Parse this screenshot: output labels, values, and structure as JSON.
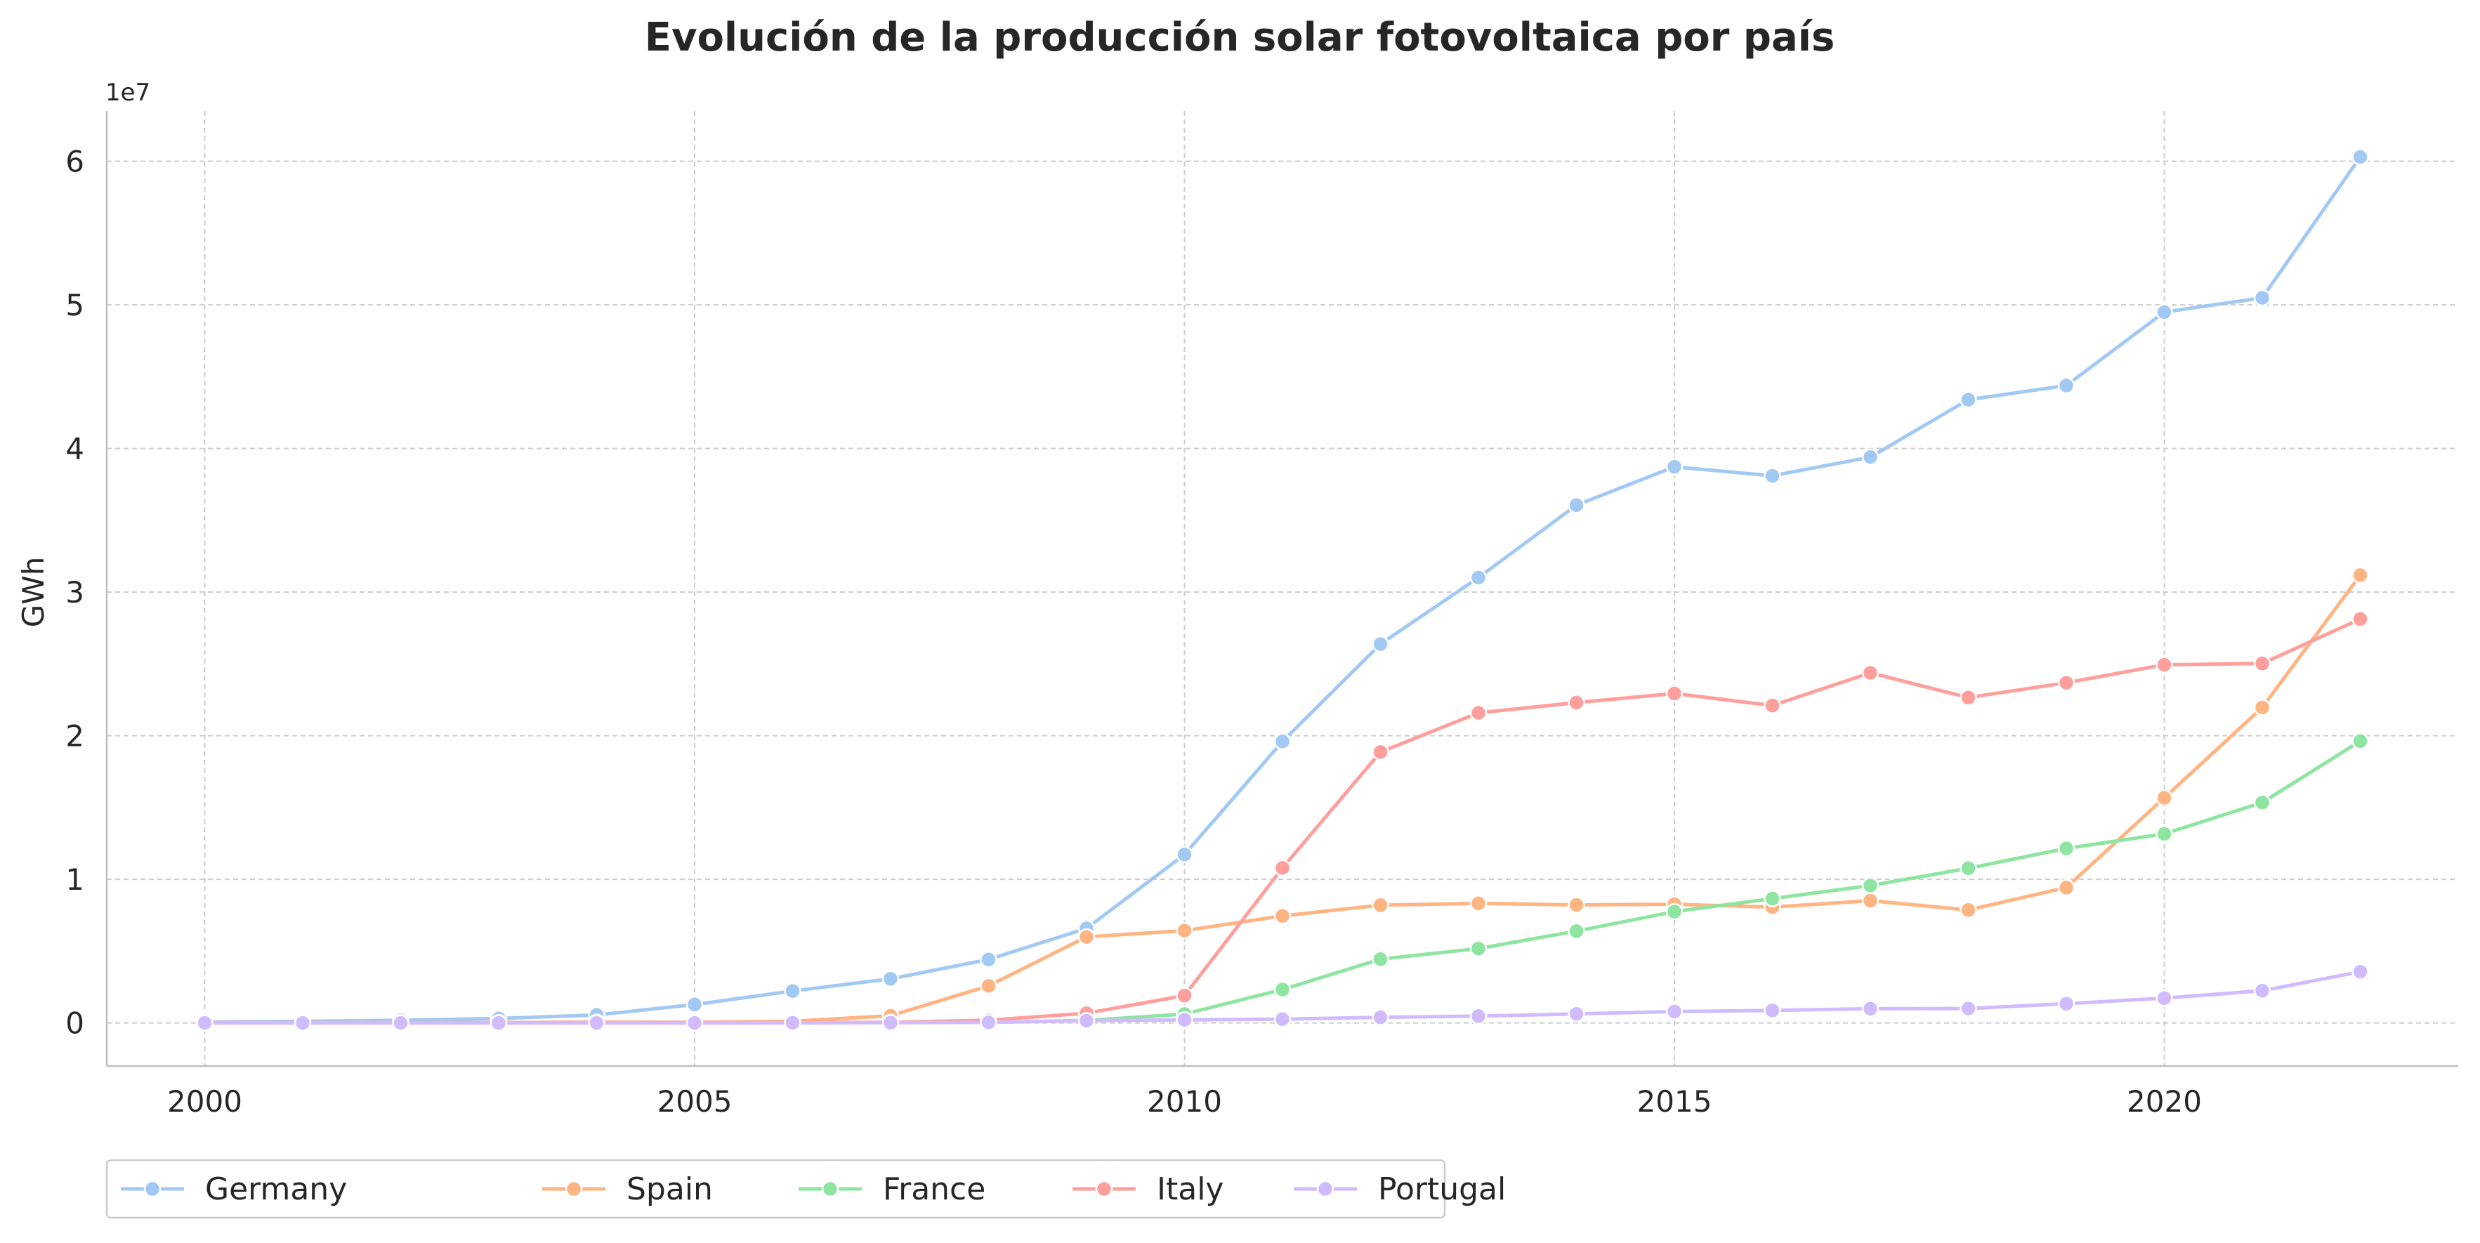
{
  "chart_data": {
    "type": "line",
    "title": "Evolución de la producción solar fotovoltaica por país",
    "xlabel": "",
    "ylabel": "GWh",
    "y_offset_label": "1e7",
    "y_tick_scale": 10000000,
    "xlim": [
      1999,
      2023
    ],
    "ylim": [
      -3000000,
      63500000
    ],
    "x_ticks": [
      2000,
      2005,
      2010,
      2015,
      2020
    ],
    "y_ticks": [
      0,
      10000000,
      20000000,
      30000000,
      40000000,
      50000000,
      60000000
    ],
    "grid": true,
    "legend_position": "bottom-left, below plot",
    "x": [
      2000,
      2001,
      2002,
      2003,
      2004,
      2005,
      2006,
      2007,
      2008,
      2009,
      2010,
      2011,
      2012,
      2013,
      2014,
      2015,
      2016,
      2017,
      2018,
      2019,
      2020,
      2021,
      2022
    ],
    "series": [
      {
        "name": "Germany",
        "color": "#a1c9f4",
        "values": [
          60000,
          116000,
          188000,
          313000,
          557000,
          1282000,
          2220000,
          3075000,
          4420000,
          6583000,
          11729000,
          19599000,
          26380000,
          31010000,
          36056000,
          38726000,
          38098000,
          39401000,
          43398000,
          44383000,
          49496000,
          50490000,
          60297000
        ]
      },
      {
        "name": "Spain",
        "color": "#ffb482",
        "values": [
          10000,
          13000,
          19000,
          27000,
          56000,
          41000,
          119000,
          501000,
          2578000,
          5991000,
          6425000,
          7454000,
          8203000,
          8327000,
          8218000,
          8264000,
          8064000,
          8514000,
          7866000,
          9423000,
          15675000,
          21967000,
          31180000
        ]
      },
      {
        "name": "France",
        "color": "#8de5a1",
        "values": [
          7000,
          10000,
          13000,
          16000,
          20000,
          24000,
          28000,
          31000,
          43000,
          174000,
          620000,
          2327000,
          4444000,
          5181000,
          6391000,
          7754000,
          8657000,
          9568000,
          10770000,
          12155000,
          13165000,
          15344000,
          19625000
        ]
      },
      {
        "name": "Italy",
        "color": "#ff9f9b",
        "values": [
          18000,
          18000,
          19000,
          26000,
          31000,
          31000,
          35000,
          39000,
          193000,
          676000,
          1906000,
          10796000,
          18862000,
          21589000,
          22306000,
          22942000,
          22104000,
          24378000,
          22654000,
          23689000,
          24942000,
          25030000,
          28121000
        ]
      },
      {
        "name": "Portugal",
        "color": "#d0bbff",
        "values": [
          1000,
          1000,
          1000,
          1000,
          2000,
          3000,
          5000,
          24000,
          38000,
          160000,
          215000,
          262000,
          393000,
          479000,
          627000,
          796000,
          871000,
          992000,
          1006000,
          1342000,
          1729000,
          2242000,
          3566000
        ]
      }
    ]
  }
}
